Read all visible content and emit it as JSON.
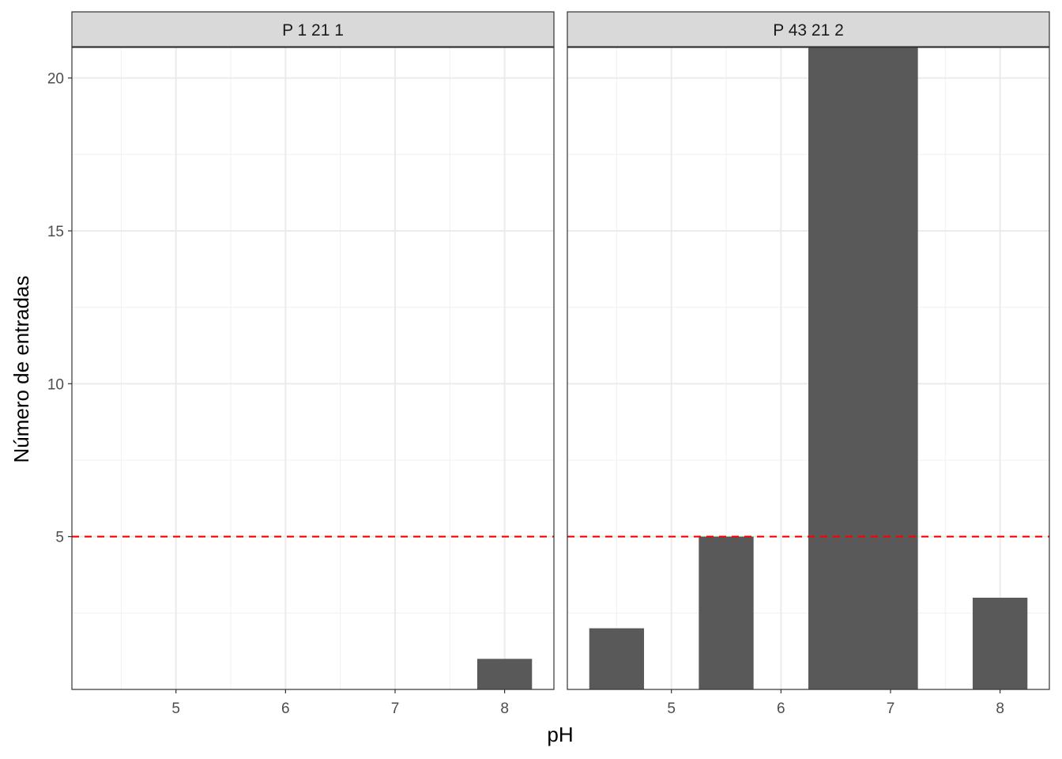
{
  "chart_data": {
    "type": "bar",
    "xlabel": "pH",
    "ylabel": "Número de entradas",
    "xlim": [
      4.05,
      8.45
    ],
    "ylim": [
      0,
      21
    ],
    "x_ticks": [
      5,
      6,
      7,
      8
    ],
    "y_ticks": [
      5,
      10,
      15,
      20
    ],
    "reference_line": {
      "y": 5,
      "style": "dashed",
      "color": "#ff0000"
    },
    "bar_color": "#595959",
    "panels": [
      {
        "title": "P 1 21 1",
        "bars": [
          {
            "x_start": 7.75,
            "x_end": 8.25,
            "value": 1
          }
        ]
      },
      {
        "title": "P 43 21 2",
        "bars": [
          {
            "x_start": 4.25,
            "x_end": 4.75,
            "value": 2
          },
          {
            "x_start": 5.25,
            "x_end": 5.75,
            "value": 5
          },
          {
            "x_start": 6.25,
            "x_end": 7.25,
            "value": 21
          },
          {
            "x_start": 7.75,
            "x_end": 8.25,
            "value": 3
          }
        ]
      }
    ]
  }
}
